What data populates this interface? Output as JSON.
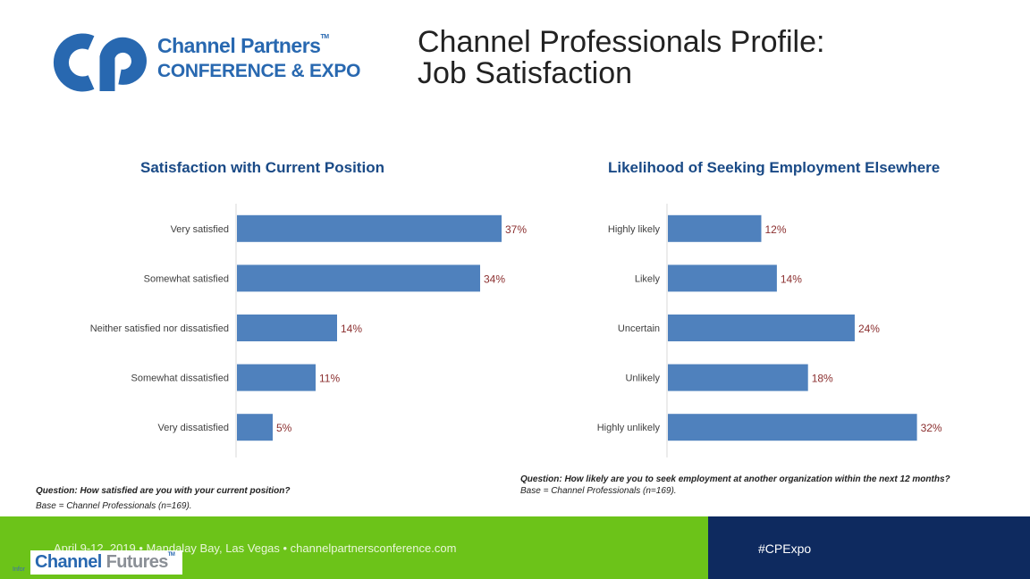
{
  "header": {
    "logo_line1": "Channel Partners",
    "logo_tm": "TM",
    "logo_line2": "CONFERENCE & EXPO",
    "title_line1": "Channel Professionals Profile:",
    "title_line2": "Job Satisfaction"
  },
  "chart_data": [
    {
      "type": "bar",
      "orientation": "horizontal",
      "title": "Satisfaction with Current Position",
      "categories": [
        "Very satisfied",
        "Somewhat satisfied",
        "Neither satisfied nor dissatisfied",
        "Somewhat dissatisfied",
        "Very dissatisfied"
      ],
      "values": [
        37,
        34,
        14,
        11,
        5
      ],
      "labels": [
        "37%",
        "34%",
        "14%",
        "11%",
        "5%"
      ],
      "xlim": [
        0,
        40
      ],
      "bar_color": "#4f81bd",
      "label_color": "#8b2f2f",
      "question": "Question: How satisfied are you with your current position?",
      "base": "Base = Channel Professionals (n=169)."
    },
    {
      "type": "bar",
      "orientation": "horizontal",
      "title": "Likelihood of Seeking Employment Elsewhere",
      "categories": [
        "Highly likely",
        "Likely",
        "Uncertain",
        "Unlikely",
        "Highly unlikely"
      ],
      "values": [
        12,
        14,
        24,
        18,
        32
      ],
      "labels": [
        "12%",
        "14%",
        "24%",
        "18%",
        "32%"
      ],
      "xlim": [
        0,
        34
      ],
      "bar_color": "#4f81bd",
      "label_color": "#8b2f2f",
      "question": "Question: How likely are you to seek employment at another organization within the next 12 months?",
      "base": "Base = Channel Professionals (n=169)."
    }
  ],
  "footer": {
    "event": "April 9-12, 2019 • Mandalay Bay, Las Vegas • channelpartnersconference.com",
    "hashtag": "#CPExpo",
    "brand_a": "Channel ",
    "brand_b": "Futures",
    "brand_tm": "TM",
    "small_text": "Infor",
    "green": "#6cc319",
    "navy": "#0e2a5f"
  }
}
